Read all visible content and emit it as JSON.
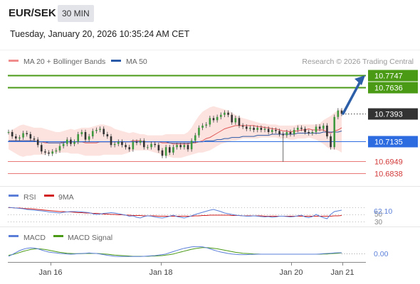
{
  "header": {
    "symbol": "EUR/SEK",
    "timeframe": "30 MIN",
    "timestamp": "Tuesday, January 20, 2026 10:35:24 AM CET"
  },
  "legend": {
    "items": [
      {
        "label": "MA 20 + Bollinger Bands",
        "color": "#f08c8c"
      },
      {
        "label": "MA 50",
        "color": "#2b5aa8"
      }
    ],
    "copyright": "Research © 2026 Trading Central"
  },
  "colors": {
    "resistance": "#4a9a16",
    "support": "#e87878",
    "pivot": "#2d6be0",
    "last_price": "#333333",
    "arrow": "#2d5fa8",
    "bollinger_fill": "#fbd9d4",
    "ma20": "#e05a5a",
    "ma50": "#2b5aa8",
    "rsi": "#5b7fd8",
    "rsi_ma": "#d22020",
    "macd": "#5b7fd8",
    "macd_signal": "#4a9a16"
  },
  "chart_data": [
    {
      "type": "candlestick",
      "title": "",
      "x_ticks": [
        "Jan 16",
        "Jan 18",
        "Jan 20",
        "Jan 21"
      ],
      "ylim": [
        10.675,
        10.7795
      ],
      "levels": [
        {
          "label": "10.7747",
          "value": 10.7747,
          "kind": "resistance"
        },
        {
          "label": "10.7636",
          "value": 10.7636,
          "kind": "resistance"
        },
        {
          "label": "10.7393",
          "value": 10.7393,
          "kind": "last"
        },
        {
          "label": "10.7135",
          "value": 10.7135,
          "kind": "pivot"
        },
        {
          "label": "10.6949",
          "value": 10.6949,
          "kind": "support"
        },
        {
          "label": "10.6838",
          "value": 10.6838,
          "kind": "support"
        }
      ],
      "series": [
        {
          "key": "price",
          "values": [
            10.722,
            10.718,
            10.716,
            10.717,
            10.721,
            10.72,
            10.716,
            10.715,
            10.71,
            10.704,
            10.703,
            10.702,
            10.704,
            10.705,
            10.709,
            10.711,
            10.715,
            10.711,
            10.713,
            10.72,
            10.722,
            10.715,
            10.718,
            10.723,
            10.724,
            10.725,
            10.72,
            10.718,
            10.71,
            10.711,
            10.713,
            10.71,
            10.708,
            10.706,
            10.713,
            10.712,
            10.714,
            10.708,
            10.708,
            10.711,
            10.71,
            10.705,
            10.7,
            10.708,
            10.703,
            10.708,
            10.71,
            10.708,
            10.71,
            10.706,
            10.714,
            10.719,
            10.726,
            10.728,
            10.729,
            10.735,
            10.733,
            10.736,
            10.738,
            10.74,
            10.738,
            10.731,
            10.735,
            10.728,
            10.727,
            10.725,
            10.726,
            10.724,
            10.726,
            10.724,
            10.725,
            10.722,
            10.724,
            10.723,
            10.72,
            10.719,
            10.722,
            10.72,
            10.724,
            10.726,
            10.725,
            10.722,
            10.721,
            10.722,
            10.727,
            10.725,
            10.728,
            10.718,
            10.708,
            10.736,
            10.742,
            10.739
          ]
        },
        {
          "key": "ma20",
          "values": [
            10.714,
            10.714,
            10.714,
            10.714,
            10.714,
            10.714,
            10.714,
            10.714,
            10.713,
            10.713,
            10.712,
            10.712,
            10.712,
            10.712,
            10.712,
            10.713,
            10.713,
            10.713,
            10.713,
            10.713,
            10.713,
            10.712,
            10.712,
            10.712,
            10.712,
            10.713,
            10.713,
            10.713,
            10.713,
            10.713,
            10.713,
            10.713,
            10.713,
            10.713,
            10.714,
            10.714,
            10.714,
            10.713,
            10.713,
            10.713,
            10.713,
            10.713,
            10.712,
            10.712,
            10.712,
            10.711,
            10.711,
            10.711,
            10.711,
            10.711,
            10.712,
            10.712,
            10.713,
            10.714,
            10.716,
            10.717,
            10.719,
            10.721,
            10.723,
            10.725,
            10.726,
            10.727,
            10.728,
            10.728,
            10.728,
            10.728,
            10.728,
            10.728,
            10.727,
            10.727,
            10.726,
            10.726,
            10.725,
            10.725,
            10.724,
            10.723,
            10.723,
            10.722,
            10.723,
            10.723,
            10.724,
            10.724,
            10.725,
            10.724,
            10.724,
            10.724,
            10.724,
            10.722,
            10.721,
            10.723,
            10.724,
            10.726
          ]
        },
        {
          "key": "ma50",
          "values": [
            10.714,
            10.714,
            10.714,
            10.714,
            10.714,
            10.714,
            10.714,
            10.714,
            10.713,
            10.713,
            10.713,
            10.712,
            10.712,
            10.712,
            10.712,
            10.712,
            10.713,
            10.713,
            10.713,
            10.713,
            10.713,
            10.713,
            10.713,
            10.713,
            10.713,
            10.713,
            10.713,
            10.713,
            10.713,
            10.713,
            10.713,
            10.713,
            10.713,
            10.713,
            10.713,
            10.713,
            10.713,
            10.713,
            10.713,
            10.713,
            10.713,
            10.713,
            10.713,
            10.713,
            10.712,
            10.712,
            10.712,
            10.712,
            10.712,
            10.712,
            10.712,
            10.713,
            10.713,
            10.713,
            10.714,
            10.714,
            10.714,
            10.715,
            10.715,
            10.716,
            10.716,
            10.717,
            10.717,
            10.717,
            10.718,
            10.718,
            10.718,
            10.718,
            10.719,
            10.719,
            10.719,
            10.719,
            10.72,
            10.72,
            10.72,
            10.72,
            10.72,
            10.72,
            10.72,
            10.721,
            10.721,
            10.721,
            10.721,
            10.721,
            10.721,
            10.721,
            10.722,
            10.722,
            10.722,
            10.722,
            10.722,
            10.723
          ]
        },
        {
          "key": "bb_upper",
          "values": [
            10.722,
            10.724,
            10.726,
            10.728,
            10.729,
            10.728,
            10.727,
            10.726,
            10.726,
            10.726,
            10.725,
            10.724,
            10.723,
            10.722,
            10.722,
            10.723,
            10.724,
            10.725,
            10.724,
            10.725,
            10.726,
            10.726,
            10.726,
            10.727,
            10.728,
            10.729,
            10.729,
            10.728,
            10.727,
            10.725,
            10.724,
            10.723,
            10.722,
            10.721,
            10.722,
            10.721,
            10.72,
            10.72,
            10.719,
            10.719,
            10.719,
            10.719,
            10.719,
            10.72,
            10.72,
            10.72,
            10.72,
            10.72,
            10.72,
            10.722,
            10.726,
            10.732,
            10.737,
            10.741,
            10.743,
            10.745,
            10.746,
            10.745,
            10.744,
            10.743,
            10.742,
            10.74,
            10.738,
            10.736,
            10.735,
            10.734,
            10.733,
            10.732,
            10.731,
            10.73,
            10.73,
            10.729,
            10.729,
            10.729,
            10.728,
            10.728,
            10.728,
            10.728,
            10.728,
            10.729,
            10.729,
            10.729,
            10.729,
            10.729,
            10.729,
            10.73,
            10.733,
            10.735,
            10.737,
            10.74,
            10.742,
            10.744
          ]
        },
        {
          "key": "bb_lower",
          "values": [
            10.706,
            10.704,
            10.702,
            10.7,
            10.699,
            10.7,
            10.7,
            10.701,
            10.701,
            10.701,
            10.701,
            10.702,
            10.702,
            10.703,
            10.703,
            10.703,
            10.703,
            10.702,
            10.702,
            10.702,
            10.701,
            10.7,
            10.7,
            10.7,
            10.7,
            10.7,
            10.701,
            10.701,
            10.701,
            10.701,
            10.701,
            10.701,
            10.702,
            10.703,
            10.705,
            10.705,
            10.705,
            10.705,
            10.705,
            10.704,
            10.703,
            10.702,
            10.701,
            10.7,
            10.699,
            10.698,
            10.698,
            10.698,
            10.699,
            10.7,
            10.701,
            10.702,
            10.703,
            10.703,
            10.704,
            10.705,
            10.707,
            10.709,
            10.711,
            10.712,
            10.713,
            10.714,
            10.714,
            10.715,
            10.716,
            10.716,
            10.716,
            10.716,
            10.716,
            10.717,
            10.717,
            10.717,
            10.717,
            10.717,
            10.716,
            10.716,
            10.716,
            10.715,
            10.715,
            10.716,
            10.716,
            10.716,
            10.717,
            10.716,
            10.715,
            10.713,
            10.711,
            10.708,
            10.706,
            10.706,
            10.705,
            10.703
          ]
        }
      ]
    },
    {
      "type": "line",
      "title": "RSI",
      "legend": [
        "RSI",
        "9MA"
      ],
      "y_ticks": [
        "50",
        "62.10",
        "30"
      ],
      "current_label": "62.10",
      "ylim": [
        20,
        80
      ],
      "series": [
        {
          "name": "RSI",
          "values": [
            70,
            69,
            68,
            67,
            66,
            64,
            63,
            62,
            61,
            60,
            59,
            57,
            56,
            55,
            54,
            56,
            57,
            58,
            58,
            58,
            57,
            56,
            55,
            52,
            50,
            51,
            53,
            54,
            55,
            54,
            52,
            50,
            48,
            45,
            46,
            42,
            40,
            44,
            46,
            45,
            43,
            41,
            40,
            42,
            45,
            48,
            44,
            42,
            40,
            43,
            46,
            50,
            53,
            56,
            59,
            62,
            64,
            61,
            58,
            54,
            52,
            50,
            48,
            47,
            46,
            45,
            45,
            46,
            45,
            44,
            43,
            44,
            42,
            43,
            45,
            45,
            44,
            43,
            44,
            46,
            48,
            43,
            41,
            44,
            50,
            45,
            41,
            38,
            50,
            58,
            60,
            62
          ]
        },
        {
          "name": "9MA",
          "values": [
            69,
            69,
            68,
            68,
            67,
            66,
            66,
            65,
            64,
            63,
            62,
            61,
            60,
            59,
            58,
            58,
            57,
            57,
            56,
            55,
            55,
            54,
            54,
            53,
            53,
            52,
            51,
            51,
            50,
            50,
            49,
            49,
            48,
            48,
            47,
            47,
            47,
            46,
            46,
            46,
            46,
            45,
            45,
            45,
            45,
            45,
            45,
            45,
            45,
            45,
            45,
            46,
            46,
            47,
            47,
            48,
            48,
            48,
            48,
            48,
            48,
            47,
            47,
            47,
            46,
            46,
            46,
            46,
            46,
            46,
            45,
            45,
            45,
            45,
            45,
            45,
            45,
            45,
            45,
            45,
            45,
            45,
            45,
            45,
            45,
            45,
            45,
            45,
            45,
            46,
            46,
            47
          ]
        }
      ]
    },
    {
      "type": "line",
      "title": "MACD",
      "legend": [
        "MACD",
        "MACD Signal"
      ],
      "current_label": "0.00",
      "series": [
        {
          "name": "MACD",
          "values": [
            -1.2,
            -0.5,
            0.4,
            1.2,
            1.8,
            2.2,
            2.4,
            2.3,
            2.0,
            1.5,
            1.0,
            0.6,
            0.4,
            0.2,
            0.0,
            -0.1,
            -0.2,
            -0.3,
            -0.2,
            -0.1,
            0.0,
            0.1,
            0.2,
            0.1,
            0.0,
            -0.2,
            -0.5,
            -0.8,
            -1.0,
            -1.2,
            -1.3,
            -1.3,
            -1.3,
            -1.3,
            -1.3,
            -1.3,
            -1.3,
            -1.2,
            -1.1,
            -1.0,
            -0.9,
            -0.7,
            -0.5,
            -0.2,
            0.3,
            0.8,
            1.3,
            1.8,
            2.2,
            2.5,
            2.8,
            2.9,
            2.9,
            2.8,
            2.5,
            2.0,
            1.5,
            1.0,
            0.6,
            0.3,
            0.0,
            -0.2,
            -0.4,
            -0.5,
            -0.5,
            -0.5,
            -0.4,
            -0.4,
            -0.3,
            -0.3,
            -0.3,
            -0.3,
            -0.3,
            -0.3,
            -0.3,
            -0.3,
            -0.3,
            -0.3,
            -0.3,
            -0.3,
            -0.3,
            -0.3,
            -0.3,
            -0.3,
            -0.3,
            -0.2,
            -0.1,
            0.0,
            0.1,
            0.2,
            0.3,
            0.3
          ]
        },
        {
          "name": "MACD Signal",
          "values": [
            -0.8,
            -0.5,
            -0.1,
            0.4,
            0.9,
            1.3,
            1.7,
            1.9,
            2.0,
            1.9,
            1.7,
            1.4,
            1.1,
            0.8,
            0.5,
            0.3,
            0.1,
            0.0,
            -0.1,
            -0.1,
            -0.1,
            0.0,
            0.0,
            0.0,
            0.0,
            -0.1,
            -0.2,
            -0.3,
            -0.5,
            -0.7,
            -0.8,
            -0.9,
            -1.0,
            -1.1,
            -1.2,
            -1.2,
            -1.2,
            -1.2,
            -1.2,
            -1.1,
            -1.1,
            -1.0,
            -0.9,
            -0.7,
            -0.5,
            -0.2,
            0.2,
            0.6,
            1.0,
            1.4,
            1.8,
            2.1,
            2.3,
            2.5,
            2.5,
            2.4,
            2.2,
            2.0,
            1.7,
            1.4,
            1.1,
            0.8,
            0.5,
            0.3,
            0.1,
            0.0,
            -0.1,
            -0.2,
            -0.2,
            -0.3,
            -0.3,
            -0.3,
            -0.3,
            -0.3,
            -0.3,
            -0.3,
            -0.3,
            -0.3,
            -0.3,
            -0.3,
            -0.3,
            -0.3,
            -0.3,
            -0.3,
            -0.3,
            -0.3,
            -0.2,
            -0.2,
            -0.1,
            0.0,
            0.1,
            0.2
          ]
        }
      ]
    }
  ]
}
